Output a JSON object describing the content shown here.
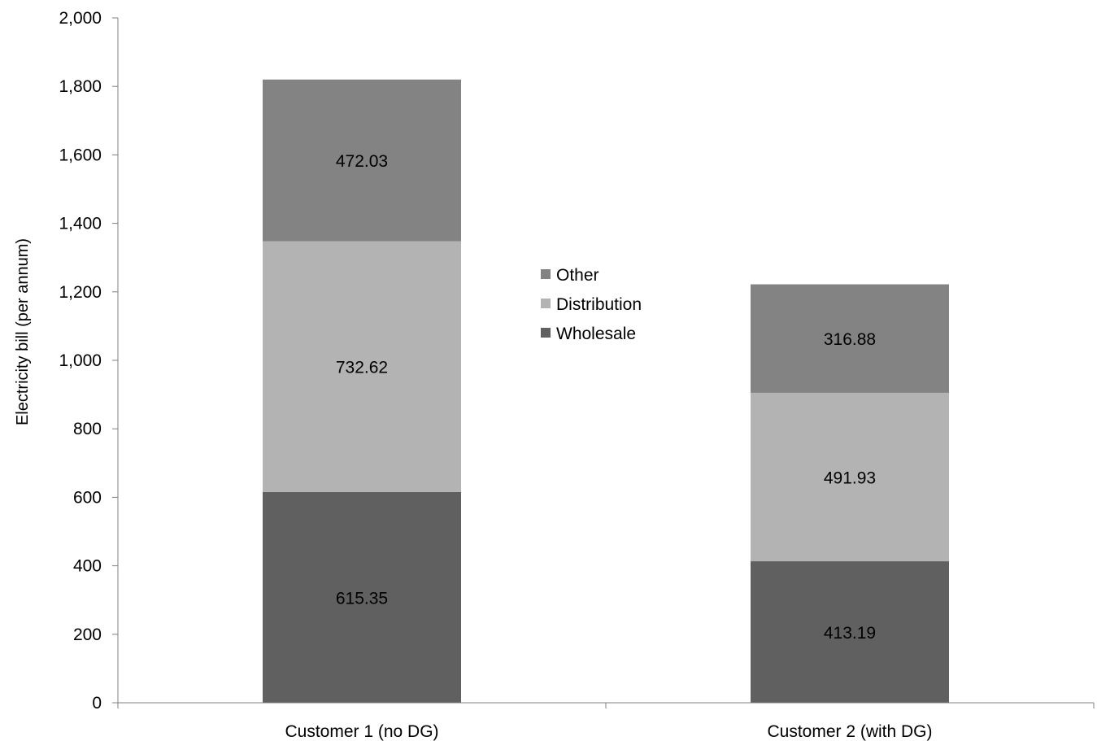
{
  "chart_data": {
    "type": "bar",
    "stacked": true,
    "categories": [
      "Customer 1 (no DG)",
      "Customer 2 (with DG)"
    ],
    "series": [
      {
        "name": "Wholesale",
        "values": [
          615.35,
          413.19
        ],
        "color": "#606060"
      },
      {
        "name": "Distribution",
        "values": [
          732.62,
          491.93
        ],
        "color": "#b3b3b3"
      },
      {
        "name": "Other",
        "values": [
          472.03,
          316.88
        ],
        "color": "#838383"
      }
    ],
    "title": "",
    "xlabel": "",
    "ylabel": "Electricity bill (per annum)",
    "ylim": [
      0,
      2000
    ],
    "yticks": [
      0,
      200,
      400,
      600,
      800,
      1000,
      1200,
      1400,
      1600,
      1800,
      2000
    ],
    "ytick_labels": [
      "0",
      "200",
      "400",
      "600",
      "800",
      "1,000",
      "1,200",
      "1,400",
      "1,600",
      "1,800",
      "2,000"
    ],
    "data_labels": [
      [
        "615.35",
        "413.19"
      ],
      [
        "732.62",
        "491.93"
      ],
      [
        "472.03",
        "316.88"
      ]
    ],
    "legend_order": [
      "Other",
      "Distribution",
      "Wholesale"
    ],
    "legend_position": "center",
    "grid": false
  }
}
